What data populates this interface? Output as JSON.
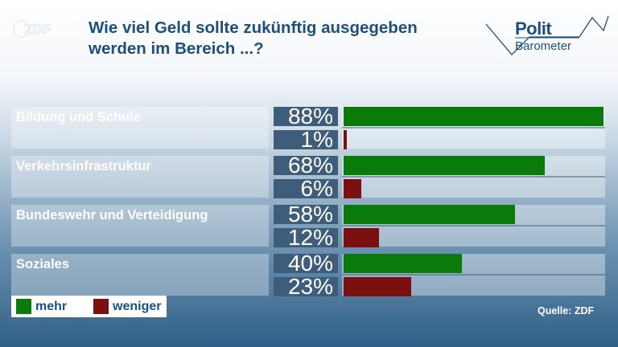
{
  "header": {
    "logo_text": "ZDF",
    "title_line1": "Wie viel Geld sollte zukünftig ausgegeben",
    "title_line2": "werden im Bereich ...?",
    "brand_line1": "Polit",
    "brand_line2": "Barometer"
  },
  "colors": {
    "mehr": "#0a7a0a",
    "weniger": "#7a1010",
    "title": "#1d4f7c"
  },
  "chart_data": {
    "type": "bar",
    "orientation": "horizontal",
    "title": "Wie viel Geld sollte zukünftig ausgegeben werden im Bereich ...?",
    "categories": [
      "Bildung und Schule",
      "Verkehrsinfrastruktur",
      "Bundeswehr und Verteidigung",
      "Soziales"
    ],
    "series": [
      {
        "name": "mehr",
        "values": [
          88,
          68,
          58,
          40
        ]
      },
      {
        "name": "weniger",
        "values": [
          1,
          6,
          12,
          23
        ]
      }
    ],
    "value_labels": [
      [
        "88%",
        "1%"
      ],
      [
        "68%",
        "6%"
      ],
      [
        "58%",
        "12%"
      ],
      [
        "40%",
        "23%"
      ]
    ],
    "xlim": [
      0,
      88
    ],
    "legend_position": "bottom-left",
    "source": "Quelle: ZDF"
  }
}
